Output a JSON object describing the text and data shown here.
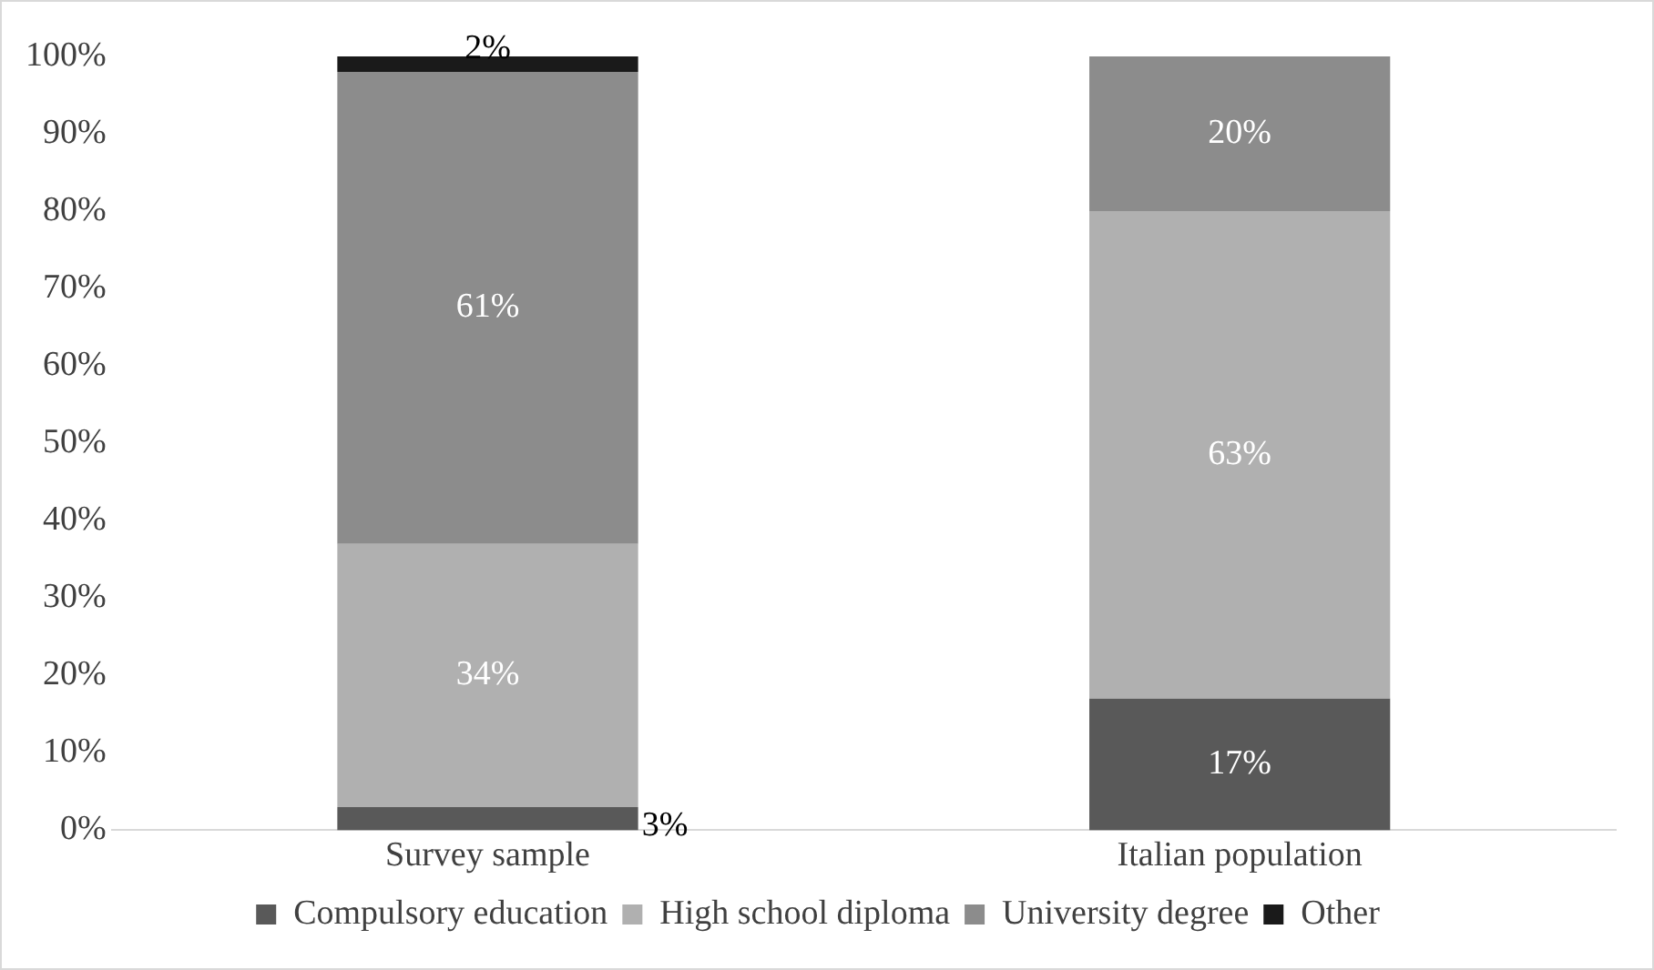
{
  "chart_data": {
    "type": "bar",
    "stacked": true,
    "categories": [
      "Survey sample",
      "Italian population"
    ],
    "series": [
      {
        "name": "Compulsory education",
        "color": "#595959",
        "values": [
          3,
          17
        ],
        "value_labels": [
          "3%",
          "17%"
        ]
      },
      {
        "name": "High school diploma",
        "color": "#b0b0b0",
        "values": [
          34,
          63
        ],
        "value_labels": [
          "34%",
          "63%"
        ]
      },
      {
        "name": "University degree",
        "color": "#8c8c8c",
        "values": [
          61,
          20
        ],
        "value_labels": [
          "61%",
          "20%"
        ]
      },
      {
        "name": "Other",
        "color": "#1a1a1a",
        "values": [
          2,
          null
        ],
        "value_labels": [
          "2%",
          null
        ]
      }
    ],
    "ylim": [
      0,
      100
    ],
    "yticks": [
      {
        "value": 0,
        "label": "0%"
      },
      {
        "value": 10,
        "label": "10%"
      },
      {
        "value": 20,
        "label": "20%"
      },
      {
        "value": 30,
        "label": "30%"
      },
      {
        "value": 40,
        "label": "40%"
      },
      {
        "value": 50,
        "label": "50%"
      },
      {
        "value": 60,
        "label": "60%"
      },
      {
        "value": 70,
        "label": "70%"
      },
      {
        "value": 80,
        "label": "80%"
      },
      {
        "value": 90,
        "label": "90%"
      },
      {
        "value": 100,
        "label": "100%"
      }
    ],
    "grid": false,
    "legend": "bottom"
  }
}
